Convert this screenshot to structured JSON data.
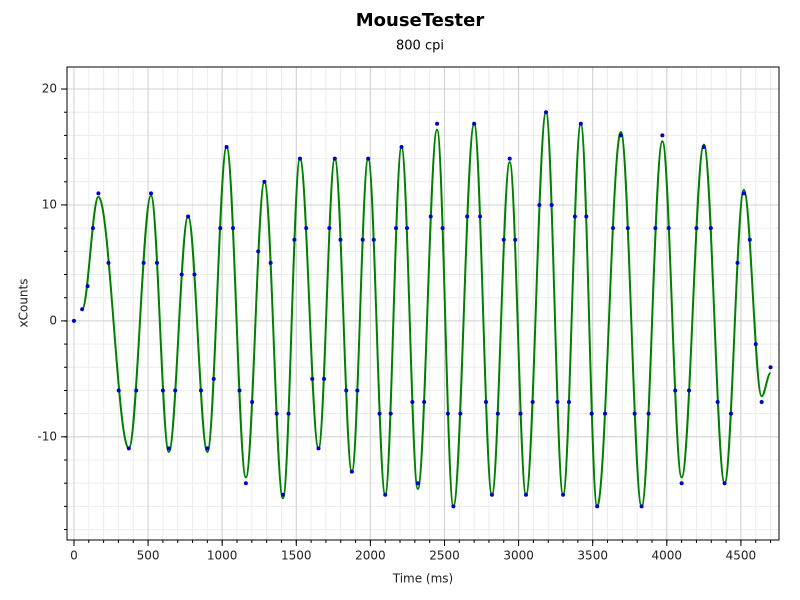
{
  "chart_data": {
    "type": "scatter",
    "title": "MouseTester",
    "subtitle": "800 cpi",
    "xlabel": "Time (ms)",
    "ylabel": "xCounts",
    "xlim": [
      -47,
      4757
    ],
    "ylim": [
      -18.9,
      21.9
    ],
    "xticks": [
      0,
      500,
      1000,
      1500,
      2000,
      2500,
      3000,
      3500,
      4000,
      4500
    ],
    "yticks": [
      -10,
      0,
      10,
      20
    ],
    "grid": true,
    "minor_grid": true,
    "series": [
      {
        "type": "line",
        "color": "#008000",
        "x": [
          55,
          165,
          370,
          520,
          640,
          770,
          900,
          1030,
          1160,
          1285,
          1410,
          1525,
          1650,
          1760,
          1875,
          1985,
          2100,
          2210,
          2320,
          2450,
          2560,
          2700,
          2820,
          2940,
          3050,
          3185,
          3300,
          3420,
          3530,
          3690,
          3830,
          3970,
          4100,
          4250,
          4390,
          4520,
          4640,
          4700
        ],
        "values": [
          1,
          10.7,
          -11,
          10.8,
          -11.3,
          9,
          -11.3,
          15,
          -13.5,
          12,
          -15.3,
          14,
          -11,
          14,
          -13,
          14,
          -15,
          15,
          -14.5,
          16.5,
          -16,
          17,
          -15,
          13.7,
          -15,
          18,
          -15,
          17,
          -16,
          16.3,
          -16,
          15.5,
          -13.5,
          15.2,
          -14,
          11.3,
          -6.5,
          -4.5
        ]
      },
      {
        "type": "scatter",
        "color": "#0000cd",
        "x": [
          0,
          55,
          92,
          128,
          165,
          233,
          302,
          370,
          420,
          470,
          520,
          560,
          600,
          640,
          683,
          727,
          770,
          813,
          857,
          900,
          943,
          987,
          1030,
          1073,
          1117,
          1160,
          1202,
          1243,
          1285,
          1327,
          1368,
          1410,
          1448,
          1487,
          1525,
          1567,
          1608,
          1650,
          1687,
          1723,
          1760,
          1798,
          1837,
          1875,
          1912,
          1948,
          1985,
          2023,
          2062,
          2100,
          2137,
          2173,
          2210,
          2247,
          2283,
          2320,
          2363,
          2407,
          2450,
          2487,
          2523,
          2560,
          2607,
          2653,
          2700,
          2740,
          2780,
          2820,
          2860,
          2900,
          2940,
          2977,
          3013,
          3050,
          3095,
          3140,
          3185,
          3223,
          3262,
          3300,
          3340,
          3380,
          3420,
          3457,
          3493,
          3530,
          3583,
          3637,
          3690,
          3737,
          3783,
          3830,
          3877,
          3923,
          3970,
          4013,
          4057,
          4100,
          4150,
          4200,
          4250,
          4297,
          4343,
          4390,
          4433,
          4477,
          4520,
          4560,
          4600,
          4640,
          4700
        ],
        "values": [
          0,
          1,
          3,
          8,
          11,
          5,
          -6,
          -11,
          -6,
          5,
          11,
          5,
          -6,
          -11,
          -6,
          4,
          9,
          4,
          -6,
          -11,
          -5,
          8,
          15,
          8,
          -6,
          -14,
          -7,
          6,
          12,
          5,
          -8,
          -15,
          -8,
          7,
          14,
          8,
          -5,
          -11,
          -5,
          8,
          14,
          7,
          -6,
          -13,
          -6,
          7,
          14,
          7,
          -8,
          -15,
          -8,
          8,
          15,
          8,
          -7,
          -14,
          -7,
          9,
          17,
          8,
          -8,
          -16,
          -8,
          9,
          17,
          9,
          -7,
          -15,
          -8,
          7,
          14,
          7,
          -8,
          -15,
          -7,
          10,
          18,
          10,
          -7,
          -15,
          -7,
          9,
          17,
          9,
          -8,
          -16,
          -8,
          8,
          16,
          8,
          -8,
          -16,
          -8,
          8,
          16,
          8,
          -6,
          -14,
          -6,
          8,
          15,
          8,
          -7,
          -14,
          -8,
          5,
          11,
          7,
          -2,
          -7,
          -4
        ]
      }
    ]
  }
}
